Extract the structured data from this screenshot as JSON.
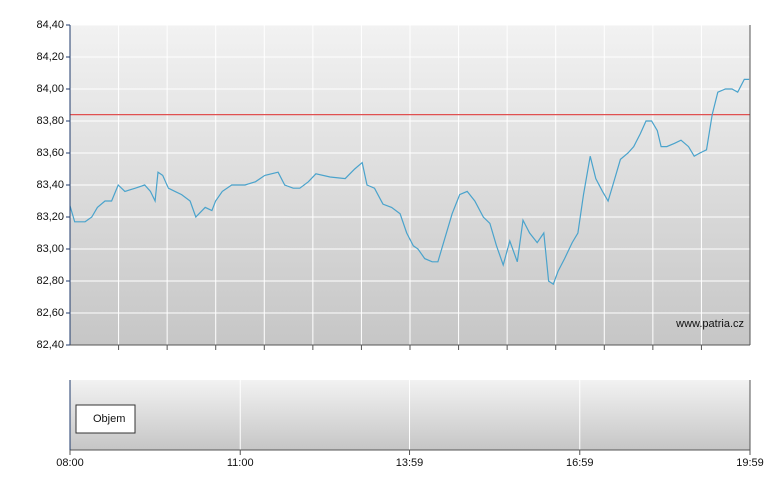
{
  "chart_data": [
    {
      "type": "line",
      "watermark": "www.patria.cz",
      "x": [
        "08:00",
        "08:05",
        "08:16",
        "08:23",
        "08:29",
        "08:37",
        "08:44",
        "08:51",
        "08:58",
        "09:09",
        "09:19",
        "09:25",
        "09:30",
        "09:33",
        "09:38",
        "09:44",
        "09:51",
        "09:58",
        "10:07",
        "10:13",
        "10:23",
        "10:30",
        "10:34",
        "10:41",
        "10:51",
        "11:05",
        "11:16",
        "11:26",
        "11:40",
        "11:47",
        "11:56",
        "12:03",
        "12:12",
        "12:20",
        "12:35",
        "12:51",
        "13:01",
        "13:09",
        "13:14",
        "13:22",
        "13:31",
        "13:40",
        "13:49",
        "13:56",
        "14:03",
        "14:08",
        "14:15",
        "14:23",
        "14:29",
        "14:36",
        "14:44",
        "14:52",
        "15:00",
        "15:08",
        "15:17",
        "15:24",
        "15:31",
        "15:38",
        "15:45",
        "15:53",
        "15:59",
        "16:06",
        "16:14",
        "16:21",
        "16:26",
        "16:31",
        "16:36",
        "16:43",
        "16:51",
        "16:57",
        "17:03",
        "17:10",
        "17:16",
        "17:23",
        "17:29",
        "17:34",
        "17:42",
        "17:50",
        "17:56",
        "18:03",
        "18:09",
        "18:15",
        "18:21",
        "18:25",
        "18:31",
        "18:39",
        "18:46",
        "18:54",
        "19:00",
        "19:06",
        "19:13",
        "19:19",
        "19:25",
        "19:33",
        "19:40",
        "19:46",
        "19:53",
        "19:58"
      ],
      "series": [
        {
          "color": "#4aa3cc",
          "values": [
            83.27,
            83.17,
            83.17,
            83.2,
            83.26,
            83.3,
            83.3,
            83.4,
            83.36,
            83.38,
            83.4,
            83.36,
            83.3,
            83.48,
            83.46,
            83.38,
            83.36,
            83.34,
            83.3,
            83.2,
            83.26,
            83.24,
            83.3,
            83.36,
            83.4,
            83.4,
            83.42,
            83.46,
            83.48,
            83.4,
            83.38,
            83.38,
            83.42,
            83.47,
            83.45,
            83.44,
            83.5,
            83.54,
            83.4,
            83.38,
            83.28,
            83.26,
            83.22,
            83.1,
            83.02,
            83.0,
            82.94,
            82.92,
            82.92,
            83.06,
            83.22,
            83.34,
            83.36,
            83.3,
            83.2,
            83.16,
            83.02,
            82.9,
            83.05,
            82.92,
            83.18,
            83.1,
            83.04,
            83.1,
            82.8,
            82.78,
            82.86,
            82.94,
            83.04,
            83.1,
            83.34,
            83.58,
            83.44,
            83.36,
            83.3,
            83.4,
            83.56,
            83.6,
            83.64,
            83.72,
            83.8,
            83.8,
            83.74,
            83.64,
            83.64,
            83.66,
            83.68,
            83.64,
            83.58,
            83.6,
            83.62,
            83.84,
            83.98,
            84.0,
            84.0,
            83.98,
            84.06,
            84.06
          ]
        }
      ],
      "reference_line": {
        "value": 83.84,
        "color": "#e05050"
      },
      "xlim": [
        "08:00",
        "19:59"
      ],
      "ylim": [
        82.4,
        84.4
      ],
      "yticks": [
        {
          "value": 82.4,
          "label": "82,40"
        },
        {
          "value": 82.6,
          "label": "82,60"
        },
        {
          "value": 82.8,
          "label": "82,80"
        },
        {
          "value": 83.0,
          "label": "83,00"
        },
        {
          "value": 83.2,
          "label": "83,20"
        },
        {
          "value": 83.4,
          "label": "83,40"
        },
        {
          "value": 83.6,
          "label": "83,60"
        },
        {
          "value": 83.8,
          "label": "83,80"
        },
        {
          "value": 84.0,
          "label": "84,00"
        },
        {
          "value": 84.2,
          "label": "84,20"
        },
        {
          "value": 84.4,
          "label": "84,40"
        }
      ],
      "grid": true
    },
    {
      "type": "bar",
      "series": [
        {
          "name": "Objem",
          "color": "#3d8fc2",
          "values": []
        }
      ],
      "xlim": [
        "08:00",
        "19:59"
      ],
      "xticks": [
        "08:00",
        "11:00",
        "13:59",
        "16:59",
        "19:59"
      ],
      "grid": true
    }
  ]
}
